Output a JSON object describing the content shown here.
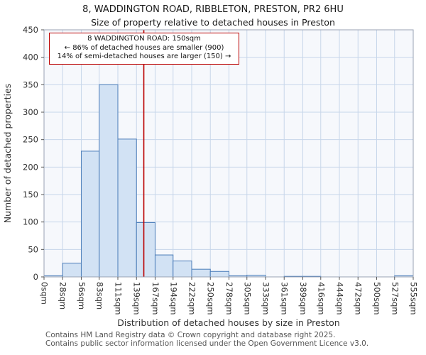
{
  "page": {
    "title_line1": "8, WADDINGTON ROAD, RIBBLETON, PRESTON, PR2 6HU",
    "title_line2": "Size of property relative to detached houses in Preston"
  },
  "annotation": {
    "line1": "8 WADDINGTON ROAD: 150sqm",
    "line2": "← 86% of detached houses are smaller (900)",
    "line3": "14% of semi-detached houses are larger (150) →",
    "border_color": "#bb0000"
  },
  "marker": {
    "value_sqm": 150,
    "color": "#bb0000"
  },
  "chart_data": {
    "type": "bar",
    "title": "Size of property relative to detached houses in Preston",
    "xlabel": "Distribution of detached houses by size in Preston",
    "ylabel": "Number of detached properties",
    "ylim": [
      0,
      450
    ],
    "ytick_step": 50,
    "yticks": [
      0,
      50,
      100,
      150,
      200,
      250,
      300,
      350,
      400,
      450
    ],
    "bin_edges_sqm": [
      0,
      28,
      56,
      83,
      111,
      139,
      167,
      194,
      222,
      250,
      278,
      305,
      333,
      361,
      389,
      416,
      444,
      472,
      500,
      527,
      555
    ],
    "categories": [
      "0sqm",
      "28sqm",
      "56sqm",
      "83sqm",
      "111sqm",
      "139sqm",
      "167sqm",
      "194sqm",
      "222sqm",
      "250sqm",
      "278sqm",
      "305sqm",
      "333sqm",
      "361sqm",
      "389sqm",
      "416sqm",
      "444sqm",
      "472sqm",
      "500sqm",
      "527sqm",
      "555sqm"
    ],
    "values": [
      2,
      25,
      229,
      350,
      251,
      99,
      40,
      29,
      14,
      10,
      2,
      3,
      0,
      1,
      1,
      0,
      0,
      0,
      0,
      2
    ],
    "grid": true,
    "colors": {
      "bar_fill": "#d2e2f4",
      "bar_border": "#4a7cb8",
      "grid": "#c7d6ea",
      "plot_bg": "#f6f8fc",
      "frame": "#98a2b3",
      "tick_text": "#333333"
    }
  },
  "footer": {
    "line1": "Contains HM Land Registry data © Crown copyright and database right 2025.",
    "line2": "Contains public sector information licensed under the Open Government Licence v3.0."
  }
}
